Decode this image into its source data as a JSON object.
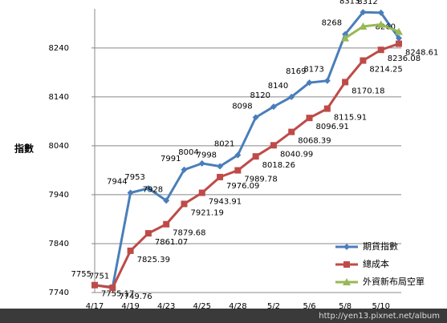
{
  "chart_data": {
    "type": "line",
    "y_label": "指數",
    "categories": [
      "4/17",
      null,
      "4/19",
      null,
      "4/23",
      null,
      "4/25",
      null,
      "4/28",
      null,
      "5/2",
      null,
      "5/6",
      null,
      "5/8",
      null,
      "5/10",
      null
    ],
    "series": [
      {
        "name": "期貨指數",
        "color": "#4a7ebb",
        "marker": "diamond",
        "values": [
          7755,
          7751,
          7944,
          7953,
          7928,
          7991,
          8004,
          7998,
          8021,
          8098,
          8120,
          8140,
          8169,
          8173,
          8268,
          8313,
          8312,
          8260
        ]
      },
      {
        "name": "總成本",
        "color": "#be4b48",
        "marker": "square",
        "values": [
          7755.17,
          7749.76,
          7825.39,
          7861.07,
          7879.68,
          7921.19,
          7943.91,
          7976.09,
          7989.78,
          8018.26,
          8040.99,
          8068.39,
          8096.91,
          8115.91,
          8170.18,
          8214.25,
          8236.08,
          8248.61
        ]
      },
      {
        "name": "外資新布局空單",
        "color": "#98b954",
        "marker": "triangle",
        "values": [
          null,
          null,
          null,
          null,
          null,
          null,
          null,
          null,
          null,
          null,
          null,
          null,
          null,
          null,
          8260,
          8284,
          8288,
          8273
        ]
      }
    ],
    "ylim": [
      7740,
      8320
    ],
    "yticks": [
      7740,
      7840,
      7940,
      8040,
      8140,
      8240
    ],
    "grid": true,
    "legend": "lower right",
    "watermark": "http://yen13.pixnet.net/album"
  }
}
